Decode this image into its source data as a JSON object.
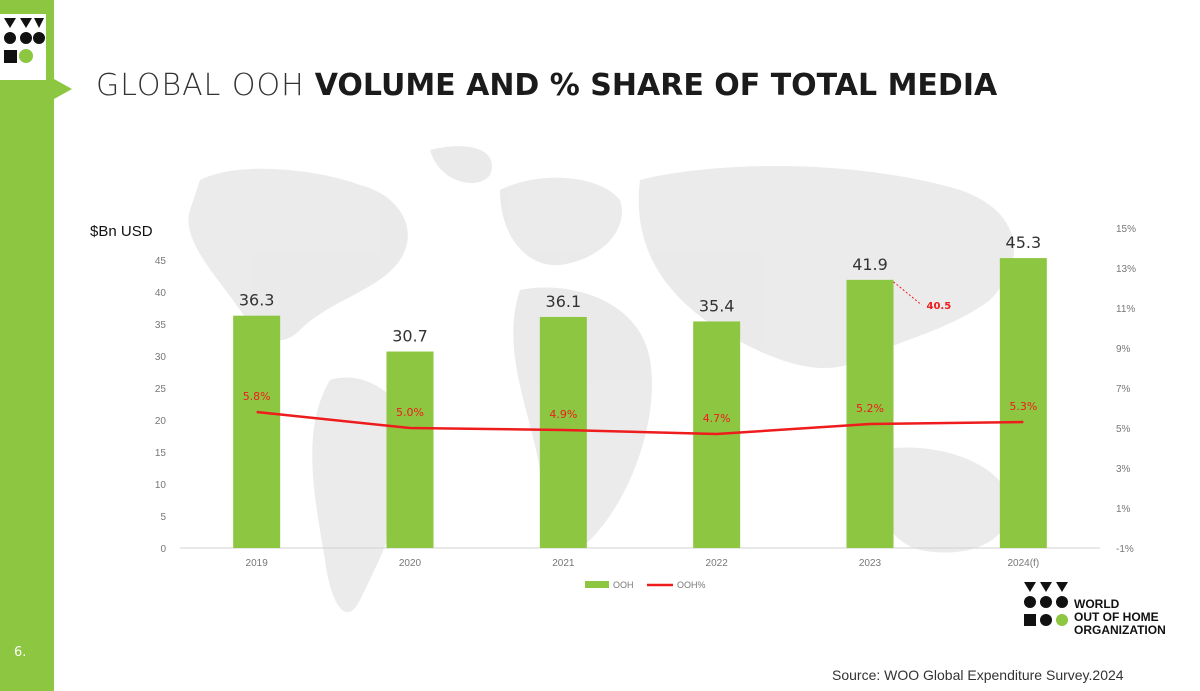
{
  "page": {
    "page_number": "6.",
    "title_light": "GLOBAL OOH",
    "title_bold": "VOLUME AND % SHARE OF TOTAL MEDIA",
    "source": "Source: WOO Global Expenditure Survey.2024",
    "org_name": [
      "WORLD",
      "OUT OF HOME",
      "ORGANIZATION"
    ]
  },
  "colors": {
    "accent_green": "#8dc641",
    "bar_green": "#8dc641",
    "line_red": "#ee1c1c"
  },
  "chart_data": {
    "type": "bar",
    "categories": [
      "2019",
      "2020",
      "2021",
      "2022",
      "2023",
      "2024(f)"
    ],
    "ylabel": "$Bn USD",
    "ylim": [
      0,
      50
    ],
    "y_ticks": [
      "0",
      "5",
      "10",
      "15",
      "20",
      "25",
      "30",
      "35",
      "40",
      "45"
    ],
    "y2lim": [
      -1,
      15
    ],
    "y2_ticks": [
      "-1%",
      "1%",
      "3%",
      "5%",
      "7%",
      "9%",
      "11%",
      "13%",
      "15%"
    ],
    "series": [
      {
        "name": "OOH",
        "type": "bar",
        "values": [
          36.3,
          30.7,
          36.1,
          35.4,
          41.9,
          45.3
        ],
        "labels": [
          "36.3",
          "30.7",
          "36.1",
          "35.4",
          "41.9",
          "45.3"
        ]
      },
      {
        "name": "OOH%",
        "type": "line",
        "axis": "secondary",
        "values": [
          5.8,
          5.0,
          4.9,
          4.7,
          5.2,
          5.3
        ],
        "labels": [
          "5.8%",
          "5.0%",
          "4.9%",
          "4.7%",
          "5.2%",
          "5.3%"
        ]
      }
    ],
    "annotation": {
      "text": "40.5",
      "category": "2023",
      "value": 40.5
    },
    "grid": false,
    "legend": "bottom"
  }
}
